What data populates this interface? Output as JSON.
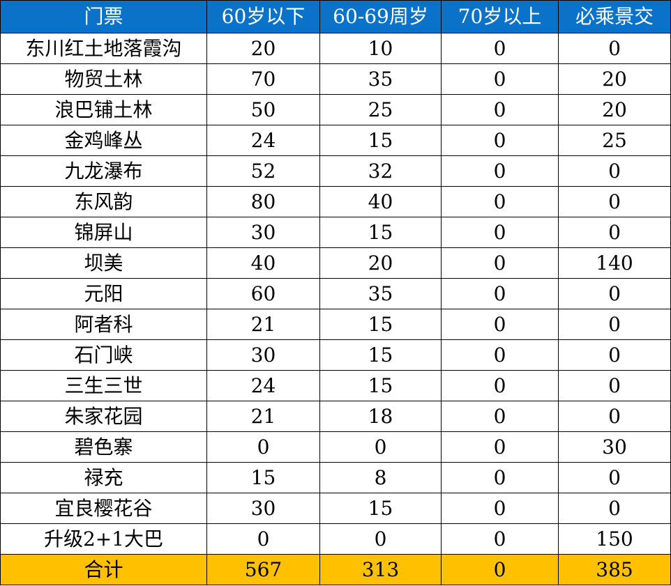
{
  "table": {
    "header": [
      "门票",
      "60岁以下",
      "60-69周岁",
      "70岁以上",
      "必乘景交"
    ],
    "rows": [
      [
        "东川红土地落霞沟",
        20,
        10,
        0,
        0
      ],
      [
        "物贸土林",
        70,
        35,
        0,
        20
      ],
      [
        "浪巴铺土林",
        50,
        25,
        0,
        20
      ],
      [
        "金鸡峰丛",
        24,
        15,
        0,
        25
      ],
      [
        "九龙瀑布",
        52,
        32,
        0,
        0
      ],
      [
        "东风韵",
        80,
        40,
        0,
        0
      ],
      [
        "锦屏山",
        30,
        15,
        0,
        0
      ],
      [
        "坝美",
        40,
        20,
        0,
        140
      ],
      [
        "元阳",
        60,
        35,
        0,
        0
      ],
      [
        "阿者科",
        21,
        15,
        0,
        0
      ],
      [
        "石门峡",
        30,
        15,
        0,
        0
      ],
      [
        "三生三世",
        24,
        15,
        0,
        0
      ],
      [
        "朱家花园",
        21,
        18,
        0,
        0
      ],
      [
        "碧色寨",
        0,
        0,
        0,
        30
      ],
      [
        "禄充",
        15,
        8,
        0,
        0
      ],
      [
        "宜良樱花谷",
        30,
        15,
        0,
        0
      ],
      [
        "升级2+1大巴",
        0,
        0,
        0,
        150
      ]
    ],
    "total": [
      "合计",
      567,
      313,
      0,
      385
    ]
  }
}
